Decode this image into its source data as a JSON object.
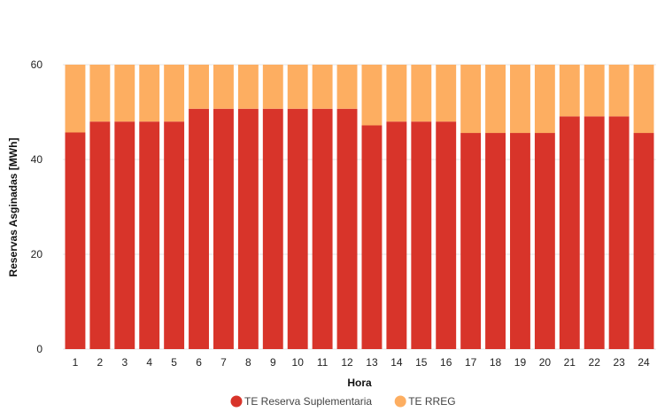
{
  "chart_data": {
    "type": "bar",
    "stacked": true,
    "title": "",
    "xlabel": "Hora",
    "ylabel": "Reservas Asginadas [MWh]",
    "categories": [
      "1",
      "2",
      "3",
      "4",
      "5",
      "6",
      "7",
      "8",
      "9",
      "10",
      "11",
      "12",
      "13",
      "14",
      "15",
      "16",
      "17",
      "18",
      "19",
      "20",
      "21",
      "22",
      "23",
      "24"
    ],
    "series": [
      {
        "name": "TE Reserva Suplementaria",
        "color": "#d8342a",
        "values": [
          45.7,
          48,
          48,
          48,
          48,
          50.7,
          50.7,
          50.7,
          50.7,
          50.7,
          50.7,
          50.7,
          47.2,
          48,
          48,
          48,
          45.6,
          45.6,
          45.6,
          45.6,
          49.1,
          49.1,
          49.1,
          45.6
        ]
      },
      {
        "name": "TE RREG",
        "color": "#fdae61",
        "values": [
          14.3,
          12,
          12,
          12,
          12,
          9.3,
          9.3,
          9.3,
          9.3,
          9.3,
          9.3,
          9.3,
          12.8,
          12,
          12,
          12,
          14.4,
          14.4,
          14.4,
          14.4,
          10.9,
          10.9,
          10.9,
          14.4
        ]
      }
    ],
    "ylim": [
      0,
      60
    ],
    "yticks": [
      0,
      20,
      40,
      60
    ],
    "grid": true,
    "legend_position": "bottom"
  }
}
